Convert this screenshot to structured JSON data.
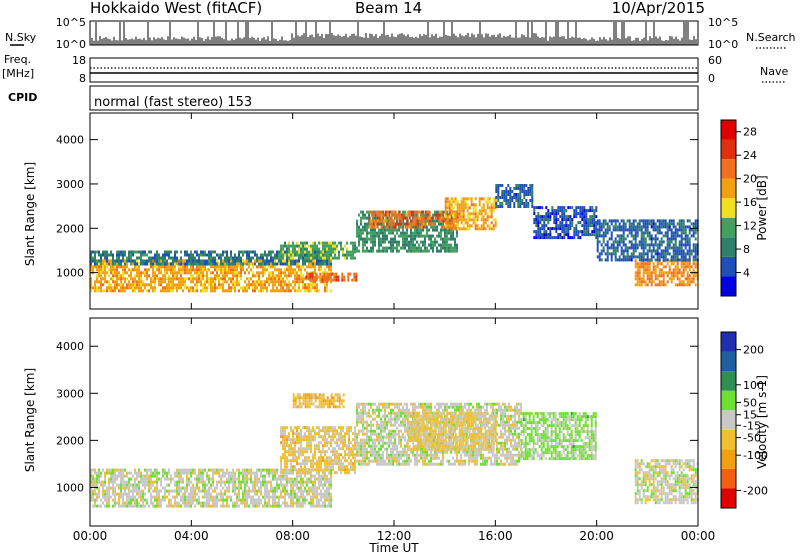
{
  "header": {
    "station": "Hokkaido West (fitACF)",
    "beam": "Beam 14",
    "date": "10/Apr/2015"
  },
  "noise_panel": {
    "left_label": "N.Sky",
    "right_label": "N.Search",
    "left_ticks": [
      "10^5",
      "10^0"
    ],
    "right_ticks": [
      "10^5",
      "10^0"
    ]
  },
  "freq_panel": {
    "left_label_1": "Freq.",
    "left_label_2": "[MHz]",
    "right_label": "Nave",
    "left_ticks": [
      "18",
      "8"
    ],
    "right_ticks": [
      "60",
      "0"
    ]
  },
  "cpid_panel": {
    "label": "CPID",
    "text": "normal (fast stereo) 153"
  },
  "x_axis": {
    "label": "Time UT",
    "ticks": [
      "00:00",
      "04:00",
      "08:00",
      "12:00",
      "16:00",
      "20:00",
      "00:00"
    ]
  },
  "colors": {
    "power": [
      "#0000e0",
      "#1f4fb8",
      "#2f7f6a",
      "#45a060",
      "#f0e020",
      "#f0a010",
      "#f07020",
      "#e03010",
      "#e00000"
    ],
    "velocity": [
      "#e00000",
      "#f06010",
      "#f0a010",
      "#f0c030",
      "#c8c8c8",
      "#70e030",
      "#2f8f50",
      "#1f5fa0",
      "#1f2fb0"
    ]
  },
  "chart_data": [
    {
      "type": "heatmap",
      "title": "Power",
      "xlabel": "Time UT",
      "ylabel": "Slant Range [km]",
      "xlim": [
        0,
        24
      ],
      "ylim": [
        180,
        4600
      ],
      "yticks": [
        "1000",
        "2000",
        "3000",
        "4000"
      ],
      "colorbar": {
        "label": "Power [dB]",
        "ticks": [
          "4",
          "8",
          "12",
          "16",
          "20",
          "24",
          "28"
        ],
        "range": [
          0,
          30
        ]
      },
      "segments": [
        {
          "t": [
            0,
            9.5
          ],
          "range": [
            600,
            1300
          ],
          "value": 18
        },
        {
          "t": [
            0,
            9.5
          ],
          "range": [
            1200,
            1500
          ],
          "value": 8
        },
        {
          "t": [
            7.5,
            10.5
          ],
          "range": [
            1300,
            1700
          ],
          "value": 12
        },
        {
          "t": [
            8.5,
            10.5
          ],
          "range": [
            800,
            1000
          ],
          "value": 22
        },
        {
          "t": [
            10.5,
            14.5
          ],
          "range": [
            1500,
            2400
          ],
          "value": 10
        },
        {
          "t": [
            11.0,
            14.5
          ],
          "range": [
            2000,
            2400
          ],
          "value": 22
        },
        {
          "t": [
            14.0,
            16.0
          ],
          "range": [
            2000,
            2700
          ],
          "value": 18
        },
        {
          "t": [
            16.0,
            17.5
          ],
          "range": [
            2500,
            3000
          ],
          "value": 6
        },
        {
          "t": [
            17.5,
            20.0
          ],
          "range": [
            1800,
            2500
          ],
          "value": 5
        },
        {
          "t": [
            21.5,
            24.0
          ],
          "range": [
            700,
            1300
          ],
          "value": 20
        },
        {
          "t": [
            20.0,
            24.0
          ],
          "range": [
            1300,
            2200
          ],
          "value": 6
        }
      ]
    },
    {
      "type": "heatmap",
      "title": "Velocity",
      "xlabel": "Time UT",
      "ylabel": "Slant Range [km]",
      "xlim": [
        0,
        24
      ],
      "ylim": [
        180,
        4600
      ],
      "yticks": [
        "1000",
        "2000",
        "3000",
        "4000"
      ],
      "colorbar": {
        "label": "Velocity [m s-1]",
        "ticks": [
          "-200",
          "-100",
          "-50",
          "-15",
          "15",
          "50",
          "100",
          "200"
        ],
        "range": [
          -250,
          250
        ]
      },
      "segments": [
        {
          "t": [
            0,
            9.5
          ],
          "range": [
            600,
            1400
          ],
          "value": 0
        },
        {
          "t": [
            7.5,
            10.5
          ],
          "range": [
            1300,
            2300
          ],
          "value": -40
        },
        {
          "t": [
            8.0,
            10.0
          ],
          "range": [
            2700,
            3000
          ],
          "value": -60
        },
        {
          "t": [
            10.5,
            17.0
          ],
          "range": [
            1500,
            2800
          ],
          "value": 0
        },
        {
          "t": [
            12.5,
            16.0
          ],
          "range": [
            1800,
            2600
          ],
          "value": -40
        },
        {
          "t": [
            17.0,
            20.0
          ],
          "range": [
            1600,
            2600
          ],
          "value": 40
        },
        {
          "t": [
            21.5,
            24.0
          ],
          "range": [
            700,
            1600
          ],
          "value": 0
        }
      ]
    }
  ]
}
